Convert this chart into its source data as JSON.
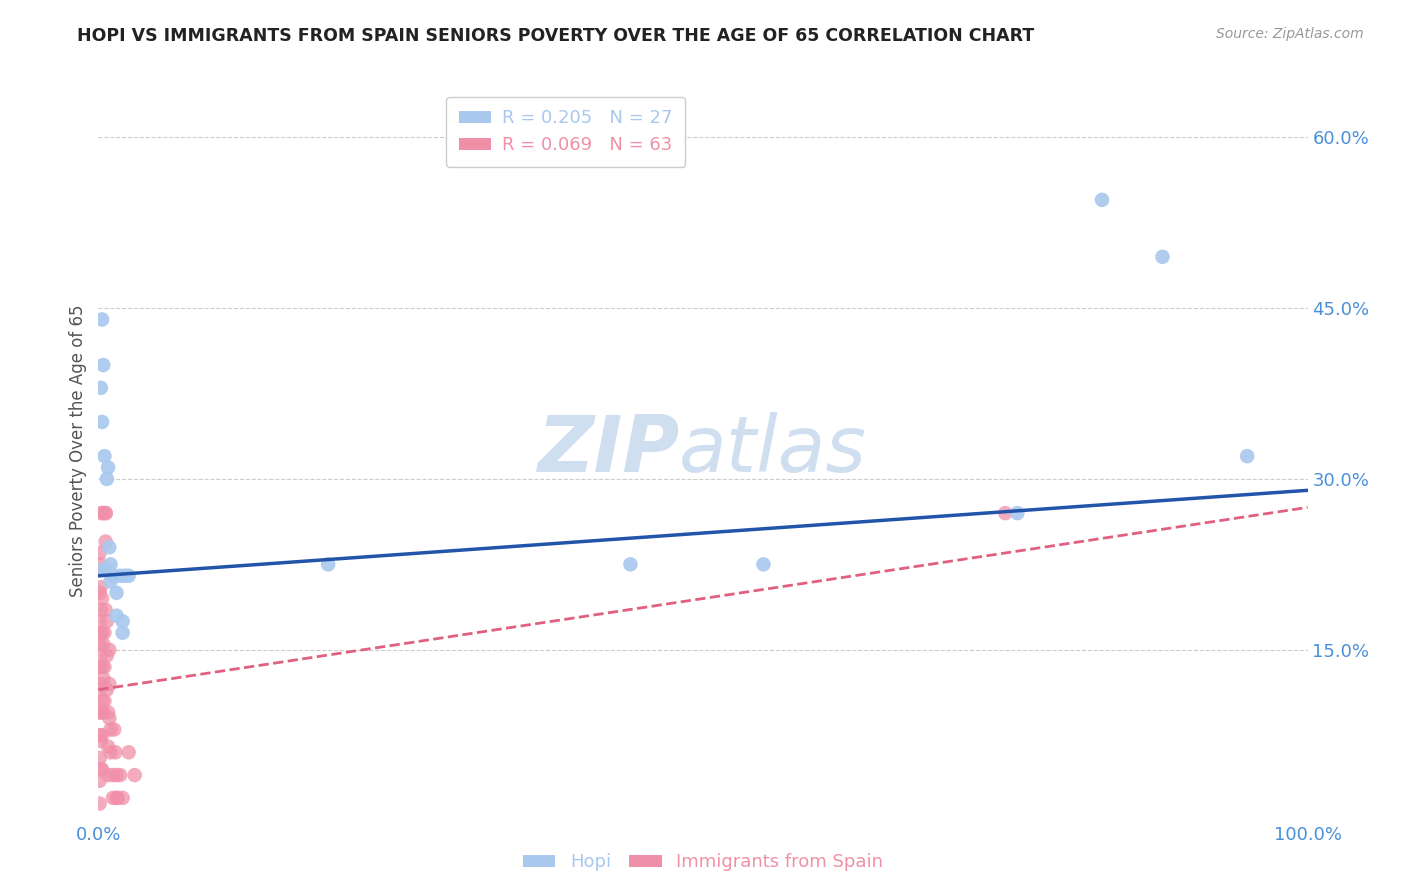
{
  "title": "HOPI VS IMMIGRANTS FROM SPAIN SENIORS POVERTY OVER THE AGE OF 65 CORRELATION CHART",
  "source": "Source: ZipAtlas.com",
  "tick_color": "#4a90d9",
  "ylabel": "Seniors Poverty Over the Age of 65",
  "hopi_R": 0.205,
  "hopi_N": 27,
  "spain_R": 0.069,
  "spain_N": 63,
  "hopi_color": "#a8c8ee",
  "spain_color": "#f090a8",
  "hopi_line_color": "#2255aa",
  "spain_line_color": "#e06080",
  "watermark_zip": "ZIP",
  "watermark_atlas": "atlas",
  "watermark_color": "#d0dff0",
  "hopi_points": [
    [
      0.001,
      0.22
    ],
    [
      0.002,
      0.38
    ],
    [
      0.003,
      0.44
    ],
    [
      0.003,
      0.35
    ],
    [
      0.004,
      0.4
    ],
    [
      0.005,
      0.32
    ],
    [
      0.006,
      0.22
    ],
    [
      0.007,
      0.3
    ],
    [
      0.008,
      0.31
    ],
    [
      0.009,
      0.24
    ],
    [
      0.01,
      0.225
    ],
    [
      0.01,
      0.21
    ],
    [
      0.012,
      0.215
    ],
    [
      0.015,
      0.2
    ],
    [
      0.015,
      0.18
    ],
    [
      0.018,
      0.215
    ],
    [
      0.02,
      0.175
    ],
    [
      0.02,
      0.165
    ],
    [
      0.022,
      0.215
    ],
    [
      0.025,
      0.215
    ],
    [
      0.19,
      0.225
    ],
    [
      0.44,
      0.225
    ],
    [
      0.55,
      0.225
    ],
    [
      0.76,
      0.27
    ],
    [
      0.83,
      0.545
    ],
    [
      0.88,
      0.495
    ],
    [
      0.95,
      0.32
    ]
  ],
  "spain_points": [
    [
      0.001,
      0.235
    ],
    [
      0.001,
      0.22
    ],
    [
      0.001,
      0.2
    ],
    [
      0.001,
      0.175
    ],
    [
      0.001,
      0.155
    ],
    [
      0.001,
      0.135
    ],
    [
      0.001,
      0.115
    ],
    [
      0.001,
      0.095
    ],
    [
      0.001,
      0.075
    ],
    [
      0.001,
      0.055
    ],
    [
      0.001,
      0.035
    ],
    [
      0.001,
      0.015
    ],
    [
      0.002,
      0.225
    ],
    [
      0.002,
      0.205
    ],
    [
      0.002,
      0.185
    ],
    [
      0.002,
      0.165
    ],
    [
      0.002,
      0.145
    ],
    [
      0.002,
      0.12
    ],
    [
      0.002,
      0.095
    ],
    [
      0.002,
      0.07
    ],
    [
      0.002,
      0.045
    ],
    [
      0.003,
      0.27
    ],
    [
      0.003,
      0.27
    ],
    [
      0.003,
      0.22
    ],
    [
      0.003,
      0.195
    ],
    [
      0.003,
      0.165
    ],
    [
      0.003,
      0.135
    ],
    [
      0.003,
      0.105
    ],
    [
      0.003,
      0.075
    ],
    [
      0.003,
      0.045
    ],
    [
      0.004,
      0.155
    ],
    [
      0.004,
      0.125
    ],
    [
      0.004,
      0.095
    ],
    [
      0.005,
      0.165
    ],
    [
      0.005,
      0.135
    ],
    [
      0.005,
      0.105
    ],
    [
      0.006,
      0.27
    ],
    [
      0.006,
      0.245
    ],
    [
      0.006,
      0.27
    ],
    [
      0.006,
      0.185
    ],
    [
      0.007,
      0.175
    ],
    [
      0.007,
      0.145
    ],
    [
      0.007,
      0.115
    ],
    [
      0.008,
      0.095
    ],
    [
      0.008,
      0.065
    ],
    [
      0.008,
      0.04
    ],
    [
      0.009,
      0.15
    ],
    [
      0.009,
      0.12
    ],
    [
      0.009,
      0.09
    ],
    [
      0.01,
      0.08
    ],
    [
      0.01,
      0.06
    ],
    [
      0.012,
      0.04
    ],
    [
      0.012,
      0.02
    ],
    [
      0.013,
      0.08
    ],
    [
      0.014,
      0.06
    ],
    [
      0.015,
      0.04
    ],
    [
      0.015,
      0.02
    ],
    [
      0.016,
      0.02
    ],
    [
      0.018,
      0.04
    ],
    [
      0.02,
      0.02
    ],
    [
      0.025,
      0.06
    ],
    [
      0.03,
      0.04
    ],
    [
      0.75,
      0.27
    ]
  ],
  "xlim": [
    0.0,
    1.0
  ],
  "ylim": [
    0.0,
    0.65
  ],
  "xticks": [
    0.0,
    0.2,
    0.4,
    0.6,
    0.8,
    1.0
  ],
  "xtick_labels": [
    "0.0%",
    "",
    "",
    "",
    "",
    "100.0%"
  ],
  "ytick_positions": [
    0.15,
    0.3,
    0.45,
    0.6
  ],
  "ytick_labels": [
    "15.0%",
    "30.0%",
    "45.0%",
    "60.0%"
  ],
  "hopi_intercept": 0.215,
  "hopi_slope": 0.075,
  "spain_intercept": 0.115,
  "spain_slope": 0.16
}
